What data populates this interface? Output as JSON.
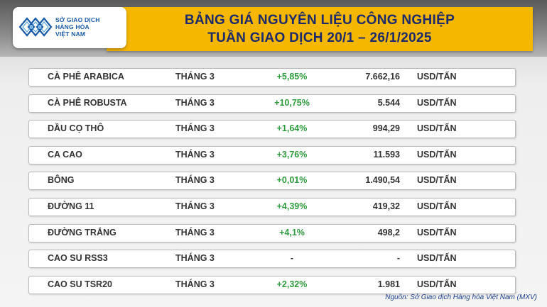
{
  "header": {
    "title_line1": "BẢNG GIÁ NGUYÊN LIỆU CÔNG NGHIỆP",
    "title_line2": "TUẦN GIAO DỊCH 20/1 – 26/1/2025"
  },
  "logo": {
    "line1": "SỞ GIAO DỊCH",
    "line2": "HÀNG HÓA",
    "line3": "VIỆT NAM",
    "color": "#1a5aa8"
  },
  "colors": {
    "banner": "#f6b700",
    "title": "#1d2a6b",
    "positive": "#2e9c3c"
  },
  "rows": [
    {
      "name": "CÀ PHÊ ARABICA",
      "month": "THÁNG 3",
      "change": "+5,85%",
      "price": "7.662,16",
      "unit": "USD/TẤN"
    },
    {
      "name": "CÀ PHÊ ROBUSTA",
      "month": "THÁNG 3",
      "change": "+10,75%",
      "price": "5.544",
      "unit": "USD/TẤN"
    },
    {
      "name": "DẦU CỌ THÔ",
      "month": "THÁNG 3",
      "change": "+1,64%",
      "price": "994,29",
      "unit": "USD/TẤN"
    },
    {
      "name": "CA CAO",
      "month": "THÁNG 3",
      "change": "+3,76%",
      "price": "11.593",
      "unit": "USD/TẤN"
    },
    {
      "name": "BÔNG",
      "month": "THÁNG 3",
      "change": "+0,01%",
      "price": "1.490,54",
      "unit": "USD/TẤN"
    },
    {
      "name": "ĐƯỜNG 11",
      "month": "THÁNG 3",
      "change": "+4,39%",
      "price": "419,32",
      "unit": "USD/TẤN"
    },
    {
      "name": "ĐƯỜNG TRẮNG",
      "month": "THÁNG 3",
      "change": "+4,1%",
      "price": "498,2",
      "unit": "USD/TẤN"
    },
    {
      "name": "CAO SU RSS3",
      "month": "THÁNG 3",
      "change": "-",
      "price": "-",
      "unit": "USD/TẤN"
    },
    {
      "name": "CAO SU TSR20",
      "month": "THÁNG 3",
      "change": "+2,32%",
      "price": "1.981",
      "unit": "USD/TẤN"
    }
  ],
  "source": "Nguồn: Sở Giao dịch Hàng hóa Việt Nam (MXV)"
}
